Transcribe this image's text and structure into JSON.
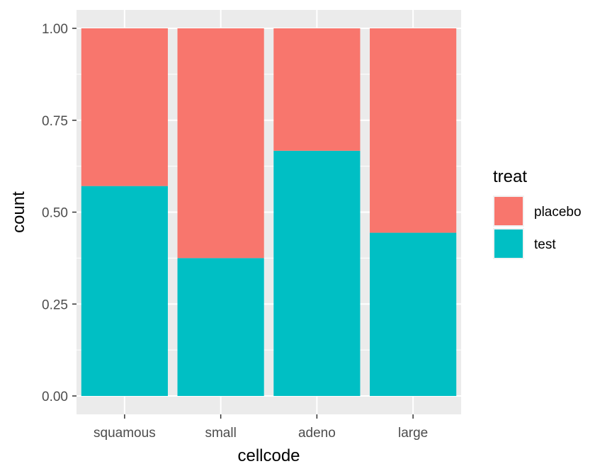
{
  "chart_data": {
    "type": "bar",
    "stacked": true,
    "position": "fill",
    "title": "",
    "xlabel": "cellcode",
    "ylabel": "count",
    "categories": [
      "squamous",
      "small",
      "adeno",
      "large"
    ],
    "series": [
      {
        "name": "placebo",
        "color": "#F8766D",
        "values": [
          0.429,
          0.625,
          0.333,
          0.556
        ]
      },
      {
        "name": "test",
        "color": "#00BFC4",
        "values": [
          0.571,
          0.375,
          0.667,
          0.444
        ]
      }
    ],
    "ylim": [
      0,
      1
    ],
    "yticks": [
      "0.00",
      "0.25",
      "0.50",
      "0.75",
      "1.00"
    ],
    "grid": true,
    "legend": {
      "title": "treat",
      "position": "right",
      "entries": [
        "placebo",
        "test"
      ]
    },
    "colors": {
      "panel_background": "#EBEBEB",
      "grid_line": "#FFFFFF",
      "tick_text": "#4D4D4D",
      "tick_mark": "#333333"
    }
  }
}
